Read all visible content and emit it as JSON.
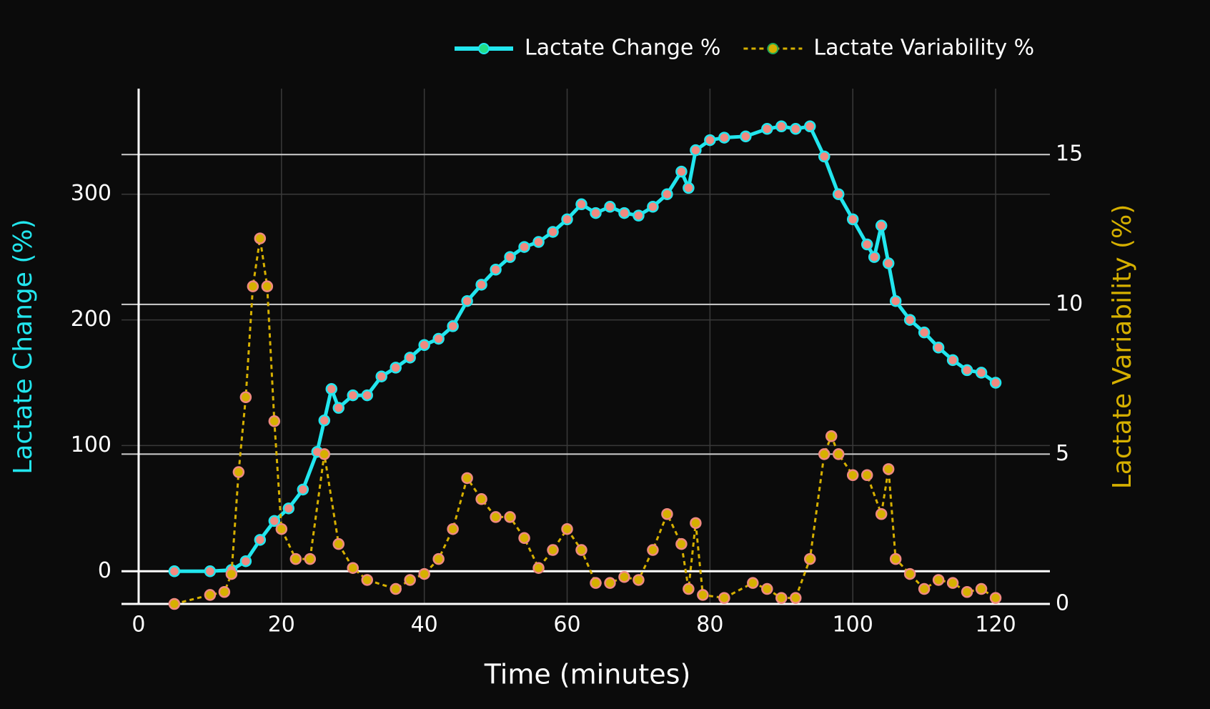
{
  "chart_data": {
    "type": "line",
    "x_label": "Time (minutes)",
    "y_label": "Lactate Change (%)",
    "y2_label": "Lactate Variability (%)",
    "xlim": [
      -2.4,
      127.6
    ],
    "xticks": [
      0,
      20,
      40,
      60,
      80,
      100,
      120
    ],
    "ylim": [
      -26,
      384
    ],
    "yticks": [
      0,
      100,
      200,
      300
    ],
    "y2lim": [
      0,
      17.2
    ],
    "y2ticks": [
      0,
      5,
      10,
      15
    ],
    "grid": true,
    "legend": "top-right",
    "series": [
      {
        "name": "Lactate Change %",
        "color": "#22e6ee",
        "marker_color": "#f08a80",
        "dash": false,
        "axis": "y",
        "x": [
          5,
          10,
          13,
          15,
          17,
          19,
          21,
          23,
          25,
          26,
          27,
          28,
          30,
          32,
          34,
          36,
          38,
          40,
          42,
          44,
          46,
          48,
          50,
          52,
          54,
          56,
          58,
          60,
          62,
          64,
          66,
          68,
          70,
          72,
          74,
          76,
          77,
          78,
          80,
          82,
          85,
          88,
          90,
          92,
          94,
          96,
          98,
          100,
          102,
          103,
          104,
          105,
          106,
          108,
          110,
          112,
          114,
          116,
          118,
          120
        ],
        "values": [
          0,
          0,
          1,
          8,
          25,
          40,
          50,
          65,
          95,
          120,
          145,
          130,
          140,
          140,
          155,
          162,
          170,
          180,
          185,
          195,
          215,
          228,
          240,
          250,
          258,
          262,
          270,
          280,
          292,
          285,
          290,
          285,
          283,
          290,
          300,
          318,
          305,
          335,
          343,
          345,
          346,
          352,
          354,
          352,
          354,
          330,
          300,
          280,
          260,
          250,
          275,
          245,
          215,
          200,
          190,
          178,
          168,
          160,
          158,
          150
        ]
      },
      {
        "name": "Lactate Variability %",
        "color": "#d6b000",
        "marker_color": "#d6b000",
        "dash": true,
        "axis": "y2",
        "x": [
          5,
          10,
          12,
          13,
          14,
          15,
          16,
          17,
          18,
          19,
          20,
          22,
          24,
          26,
          28,
          30,
          32,
          36,
          38,
          40,
          42,
          44,
          46,
          48,
          50,
          52,
          54,
          56,
          58,
          60,
          62,
          64,
          66,
          68,
          70,
          72,
          74,
          76,
          77,
          78,
          79,
          82,
          86,
          88,
          90,
          92,
          94,
          96,
          97,
          98,
          100,
          102,
          104,
          105,
          106,
          108,
          110,
          112,
          114,
          116,
          118,
          120
        ],
        "values": [
          0,
          0.3,
          0.4,
          1,
          4.4,
          6.9,
          10.6,
          12.2,
          10.6,
          6.1,
          2.5,
          1.5,
          1.5,
          5,
          2,
          1.2,
          0.8,
          0.5,
          0.8,
          1,
          1.5,
          2.5,
          4.2,
          3.5,
          2.9,
          2.9,
          2.2,
          1.2,
          1.8,
          2.5,
          1.8,
          0.7,
          0.7,
          0.9,
          0.8,
          1.8,
          3,
          2,
          0.5,
          2.7,
          0.3,
          0.2,
          0.7,
          0.5,
          0.2,
          0.2,
          1.5,
          5,
          5.6,
          5,
          4.3,
          4.3,
          3,
          4.5,
          1.5,
          1,
          0.5,
          0.8,
          0.7,
          0.4,
          0.5,
          0.2
        ]
      }
    ]
  }
}
